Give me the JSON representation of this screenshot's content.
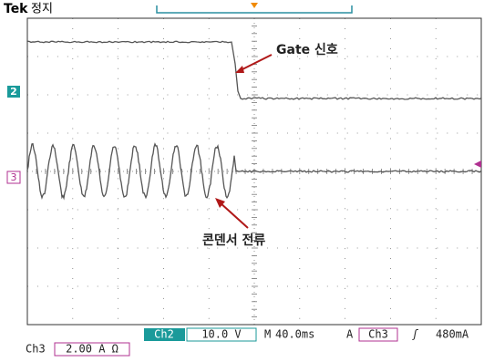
{
  "header": {
    "brand": "Tek",
    "state": "정지"
  },
  "annotations": {
    "gate": "Gate 신호",
    "capacitor": "콘덴서 전류"
  },
  "markers": {
    "ch2": "2",
    "ch3": "3"
  },
  "status": {
    "ch2_label": "Ch2",
    "ch2_scale": "10.0 V",
    "time_prefix": "M",
    "time_scale": "40.0ms",
    "trigger_prefix": "A",
    "trigger_channel": "Ch3",
    "trigger_slope": "ʃ",
    "trigger_level": "480mA",
    "ch3_label": "Ch3",
    "ch3_scale": "2.00 A Ω"
  }
}
